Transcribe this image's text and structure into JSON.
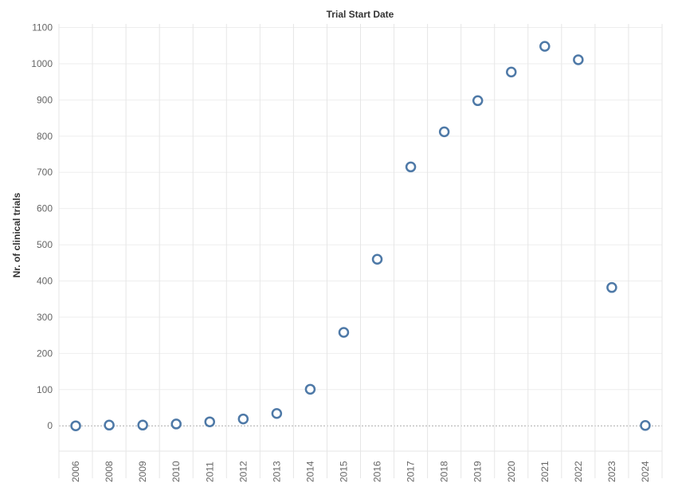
{
  "chart_data": {
    "type": "scatter",
    "title": "Trial Start Date",
    "ylabel": "Nr. of clinical trials",
    "xlabel": "",
    "categories": [
      "2006",
      "2008",
      "2009",
      "2010",
      "2011",
      "2012",
      "2013",
      "2014",
      "2015",
      "2016",
      "2017",
      "2018",
      "2019",
      "2020",
      "2021",
      "2022",
      "2023",
      "2024"
    ],
    "series": [
      {
        "values": [
          0,
          2,
          2,
          5,
          11,
          19,
          34,
          101,
          258,
          460,
          715,
          812,
          898,
          977,
          1048,
          1011,
          382,
          1
        ]
      }
    ],
    "ylim": [
      -70,
      1110
    ],
    "yticks": [
      0,
      100,
      200,
      300,
      400,
      500,
      600,
      700,
      800,
      900,
      1000,
      1100
    ],
    "grid": true,
    "marker_color": "#4e79a7"
  }
}
